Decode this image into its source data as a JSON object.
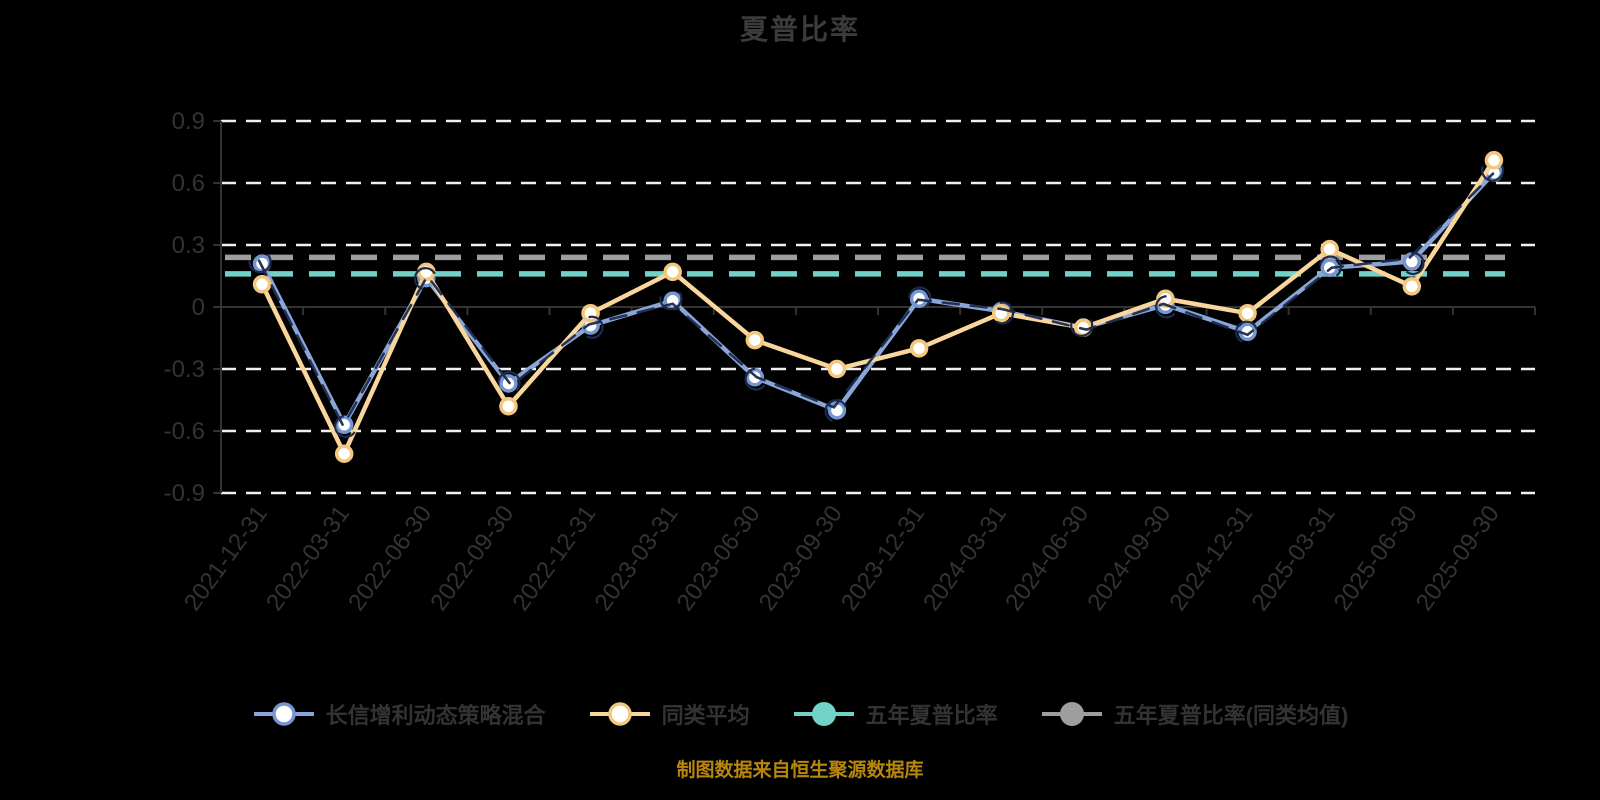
{
  "title": "夏普比率",
  "caption": "制图数据来自恒生聚源数据库",
  "colors": {
    "background": "#000000",
    "grid": "#f0f0f0",
    "axis": "#333333",
    "text": "#333333",
    "title_text": "#3b3b3b",
    "caption_text": "#b8860b",
    "fund_line": "#8aa6d9",
    "fund_marker": "#7596cf",
    "sketch_ink": "#1e2a4d",
    "peer_line": "#f9d69b",
    "peer_marker": "#f3c77e",
    "five_year_line": "#72d2c8",
    "five_year_avg_line": "#9e9e9e",
    "marker_fill": "#ffffff"
  },
  "legend": {
    "items": [
      {
        "label": "长信增利动态策略混合",
        "color_key": "fund_line",
        "ring_key": "fund_marker",
        "style": "hollow"
      },
      {
        "label": "同类平均",
        "color_key": "peer_line",
        "ring_key": "peer_marker",
        "style": "hollow"
      },
      {
        "label": "五年夏普比率",
        "color_key": "five_year_line",
        "ring_key": "five_year_line",
        "style": "solid"
      },
      {
        "label": "五年夏普比率(同类均值)",
        "color_key": "five_year_avg_line",
        "ring_key": "five_year_avg_line",
        "style": "solid"
      }
    ]
  },
  "chart_data": {
    "type": "line",
    "title": "夏普比率",
    "xlabel": "",
    "ylabel": "",
    "ylim": [
      -0.9,
      0.9
    ],
    "yticks": [
      0.9,
      0.6,
      0.3,
      0,
      -0.3,
      -0.6,
      -0.9
    ],
    "grid": true,
    "grid_style": "dashed",
    "legend_position": "bottom",
    "categories": [
      "2021-12-31",
      "2022-03-31",
      "2022-06-30",
      "2022-09-30",
      "2022-12-31",
      "2023-03-31",
      "2023-06-30",
      "2023-09-30",
      "2023-12-31",
      "2024-03-31",
      "2024-06-30",
      "2024-09-30",
      "2024-12-31",
      "2025-03-31",
      "2025-06-30",
      "2025-09-30"
    ],
    "series": [
      {
        "name": "长信增利动态策略混合",
        "type": "line",
        "values": [
          0.21,
          -0.57,
          0.14,
          -0.37,
          -0.09,
          0.03,
          -0.34,
          -0.5,
          0.04,
          -0.02,
          -0.1,
          0.01,
          -0.12,
          0.19,
          0.22,
          0.65
        ]
      },
      {
        "name": "同类平均",
        "type": "line",
        "values": [
          0.11,
          -0.71,
          0.17,
          -0.48,
          -0.03,
          0.17,
          -0.16,
          -0.3,
          -0.2,
          -0.03,
          -0.1,
          0.04,
          -0.03,
          0.28,
          0.1,
          0.71
        ]
      },
      {
        "name": "五年夏普比率",
        "type": "ref-line",
        "value": 0.16
      },
      {
        "name": "五年夏普比率(同类均值)",
        "type": "ref-line",
        "value": 0.24
      }
    ]
  }
}
